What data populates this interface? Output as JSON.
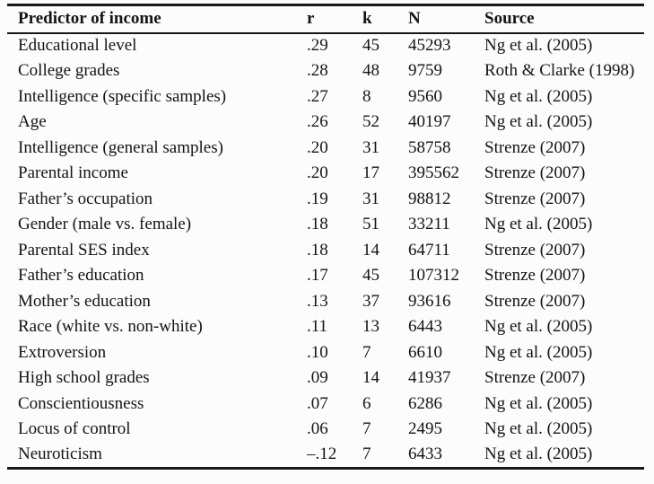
{
  "table": {
    "columns": [
      "Predictor of income",
      "r",
      "k",
      "N",
      "Source"
    ],
    "rows": [
      {
        "predictor": "Educational level",
        "r": ".29",
        "k": "45",
        "n": "45293",
        "source": "Ng et al. (2005)"
      },
      {
        "predictor": "College grades",
        "r": ".28",
        "k": "48",
        "n": "9759",
        "source": "Roth & Clarke (1998)"
      },
      {
        "predictor": "Intelligence (specific samples)",
        "r": ".27",
        "k": "8",
        "n": "9560",
        "source": "Ng et al. (2005)"
      },
      {
        "predictor": "Age",
        "r": ".26",
        "k": "52",
        "n": "40197",
        "source": "Ng et al. (2005)"
      },
      {
        "predictor": "Intelligence (general samples)",
        "r": ".20",
        "k": "31",
        "n": "58758",
        "source": "Strenze (2007)"
      },
      {
        "predictor": "Parental income",
        "r": ".20",
        "k": "17",
        "n": "395562",
        "source": "Strenze (2007)"
      },
      {
        "predictor": "Father’s occupation",
        "r": ".19",
        "k": "31",
        "n": "98812",
        "source": "Strenze (2007)"
      },
      {
        "predictor": "Gender (male vs. female)",
        "r": ".18",
        "k": "51",
        "n": "33211",
        "source": "Ng et al. (2005)"
      },
      {
        "predictor": "Parental SES index",
        "r": ".18",
        "k": "14",
        "n": "64711",
        "source": "Strenze (2007)"
      },
      {
        "predictor": "Father’s education",
        "r": ".17",
        "k": "45",
        "n": "107312",
        "source": "Strenze (2007)"
      },
      {
        "predictor": "Mother’s education",
        "r": ".13",
        "k": "37",
        "n": "93616",
        "source": "Strenze (2007)"
      },
      {
        "predictor": "Race (white vs. non-white)",
        "r": ".11",
        "k": "13",
        "n": "6443",
        "source": "Ng et al. (2005)"
      },
      {
        "predictor": "Extroversion",
        "r": ".10",
        "k": "7",
        "n": "6610",
        "source": "Ng et al. (2005)"
      },
      {
        "predictor": "High school grades",
        "r": ".09",
        "k": "14",
        "n": "41937",
        "source": "Strenze (2007)"
      },
      {
        "predictor": "Conscientiousness",
        "r": ".07",
        "k": "6",
        "n": "6286",
        "source": "Ng et al. (2005)"
      },
      {
        "predictor": "Locus of control",
        "r": ".06",
        "k": "7",
        "n": "2495",
        "source": "Ng et al. (2005)"
      },
      {
        "predictor": "Neuroticism",
        "r": "–.12",
        "k": "7",
        "n": "6433",
        "source": "Ng et al. (2005)"
      }
    ]
  }
}
